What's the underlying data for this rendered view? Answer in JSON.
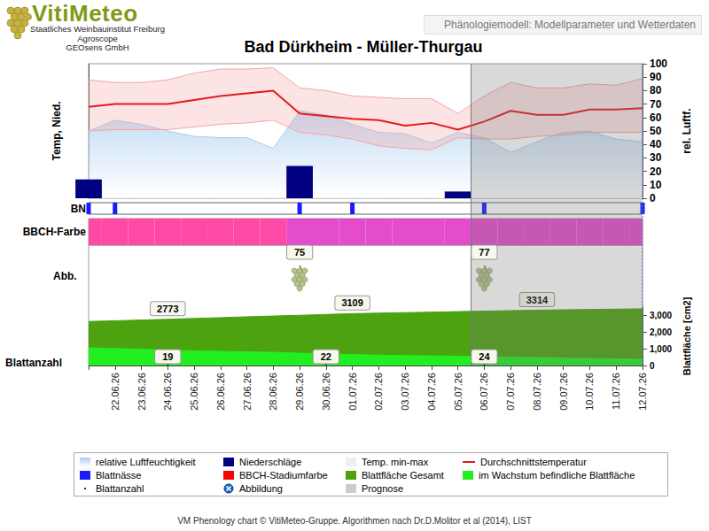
{
  "header": {
    "logo": "VitiMeteo",
    "logo_lines": [
      "Staatliches Weinbauinstitut Freiburg",
      "Agroscope",
      "GEOsens GmbH"
    ],
    "badge": "Phänologiemodell: Modellparameter und Wetterdaten"
  },
  "title": "Bad Dürkheim - Müller-Thurgau",
  "forecast_after": "05.07.26",
  "chart_data": [
    {
      "type": "line",
      "ylabel": "Temp, Nied.",
      "y2label": "rel. Luftf.",
      "ylim": [
        0,
        100
      ],
      "yticks": [
        0,
        10,
        20,
        30,
        40,
        50,
        60,
        70,
        80,
        90,
        100
      ],
      "grid": false,
      "series": [
        {
          "name": "relative Luftfeuchtigkeit",
          "type": "area",
          "color": "#a8ccf0",
          "values": [
            50,
            58,
            55,
            50,
            46,
            45,
            45,
            37,
            65,
            62,
            55,
            49,
            48,
            41,
            49,
            45,
            34,
            42,
            49,
            50,
            44,
            42
          ]
        },
        {
          "name": "Temp. min-max",
          "type": "band",
          "color": "#f4a4a4",
          "low": [
            50,
            51,
            51,
            51,
            53,
            55,
            56,
            58,
            49,
            47,
            44,
            39,
            37,
            36,
            45,
            44,
            44,
            46,
            47,
            49,
            49,
            49
          ],
          "high": [
            88,
            86,
            86,
            88,
            93,
            96,
            96,
            97,
            82,
            80,
            76,
            75,
            74,
            74,
            63,
            76,
            86,
            82,
            82,
            85,
            84,
            89
          ]
        },
        {
          "name": "Niederschläge",
          "type": "bar",
          "color": "#000080",
          "values": [
            14,
            0,
            0,
            0,
            0,
            0,
            0,
            0,
            24,
            0,
            0,
            0,
            0,
            0,
            5,
            0,
            0,
            0,
            0,
            0,
            0,
            0
          ]
        },
        {
          "name": "Durchschnittstemperatur",
          "type": "line",
          "color": "#e41a1a",
          "values": [
            68,
            70,
            70,
            70,
            73,
            76,
            78,
            80,
            63,
            61,
            59,
            58,
            54,
            56,
            51,
            57,
            65,
            62,
            62,
            66,
            66,
            67
          ]
        }
      ]
    },
    {
      "type": "bar",
      "row_label": "BN",
      "ylim": [
        0,
        1
      ],
      "tick_labels": false,
      "series": [
        {
          "name": "Blattnässe",
          "color": "#1a1aff",
          "values": [
            1,
            1,
            0,
            0,
            0,
            0,
            0,
            0,
            1,
            0,
            1,
            0,
            0,
            0,
            0,
            1,
            0,
            0,
            0,
            0,
            0,
            1
          ]
        }
      ]
    },
    {
      "type": "strip",
      "row_label": "BBCH-Farbe",
      "colors": [
        "#ff4aa5",
        "#ff4aa5",
        "#ff4aa5",
        "#ff4aa5",
        "#ff4aa5",
        "#ff4aa5",
        "#ff4aa5",
        "#ff4aa5",
        "#e54ccc",
        "#e54ccc",
        "#e54ccc",
        "#e54ccc",
        "#e54ccc",
        "#e54ccc",
        "#e54ccc",
        "#e54ccc",
        "#e54ccc",
        "#e54ccc",
        "#e54ccc",
        "#e54ccc",
        "#e54ccc",
        "#e54ccc"
      ]
    },
    {
      "type": "images",
      "row_label": "Abb.",
      "items": [
        {
          "date": "29.06.26",
          "value": 75
        },
        {
          "date": "06.07.26",
          "value": 77
        }
      ]
    },
    {
      "type": "area",
      "row_label": "Blattanzahl",
      "ylabel": "Blattfläche [cm2]",
      "categories": [
        null,
        "22.06.26",
        "23.06.26",
        "24.06.26",
        "25.06.26",
        "26.06.26",
        "27.06.26",
        "28.06.26",
        "29.06.26",
        "30.06.26",
        "01.07.26",
        "02.07.26",
        "03.07.26",
        "04.07.26",
        "05.07.26",
        "06.07.26",
        "07.07.26",
        "08.07.26",
        "09.07.26",
        "10.07.26",
        "11.07.26",
        "12.07.26"
      ],
      "ylim": [
        0,
        3500
      ],
      "yticks": [
        0,
        {
          "value": 1000,
          "label": "1,000"
        },
        {
          "value": 2000,
          "label": "2,000"
        },
        {
          "value": 3000,
          "label": "3,000"
        }
      ],
      "grid": false,
      "series": [
        {
          "name": "Blattfläche Gesamt",
          "type": "area",
          "color": "#4ca30f",
          "values": [
            2640,
            2680,
            2725,
            2773,
            2820,
            2870,
            2920,
            2965,
            3010,
            3060,
            3109,
            3140,
            3170,
            3200,
            3230,
            3260,
            3290,
            3314,
            3340,
            3360,
            3380,
            3400
          ]
        },
        {
          "name": "im Wachstum befindliche Blattfläche",
          "type": "area",
          "color": "#22ee22",
          "values": [
            1060,
            1020,
            980,
            920,
            880,
            850,
            820,
            790,
            740,
            700,
            660,
            620,
            600,
            580,
            560,
            520,
            500,
            480,
            450,
            420,
            400,
            380
          ]
        },
        {
          "name": "Blattanzahl",
          "type": "labels",
          "color": "#333333",
          "points": [
            {
              "date": "24.06.26",
              "value": 19
            },
            {
              "date": "30.06.26",
              "value": 22
            },
            {
              "date": "06.07.26",
              "value": 24
            }
          ]
        }
      ],
      "annotations": [
        {
          "date": "24.06.26",
          "value": 2773
        },
        {
          "date": "01.07.26",
          "value": 3109
        },
        {
          "date": "08.07.26",
          "value": 3314
        }
      ]
    }
  ],
  "legend_items": [
    {
      "name": "relative Luftfeuchtigkeit",
      "color": "#a8ccf0",
      "marker": "gradient"
    },
    {
      "name": "Niederschläge",
      "color": "#000080",
      "marker": "square"
    },
    {
      "name": "Temp. min-max",
      "color": "#eeeeee",
      "marker": "square"
    },
    {
      "name": "Durchschnittstemperatur",
      "color": "#e41a1a",
      "marker": "line"
    },
    {
      "name": "Blattnässe",
      "color": "#1a1aff",
      "marker": "square"
    },
    {
      "name": "BBCH-Stadiumfarbe",
      "color": "#ff0000",
      "marker": "square"
    },
    {
      "name": "Blattfläche Gesamt",
      "color": "#4ca30f",
      "marker": "square"
    },
    {
      "name": "im Wachstum befindliche Blattfläche",
      "color": "#22ee22",
      "marker": "square"
    },
    {
      "name": "Blattanzahl",
      "color": "#333333",
      "marker": "dot"
    },
    {
      "name": "Abbildung",
      "color": "#1a6acc",
      "marker": "circle"
    },
    {
      "name": "Prognose",
      "color": "#cccccc",
      "marker": "square"
    }
  ],
  "footer": "VM Phenology chart © VitiMeteo-Gruppe. Algorithmen nach Dr.D.Molitor et al (2014), LIST"
}
